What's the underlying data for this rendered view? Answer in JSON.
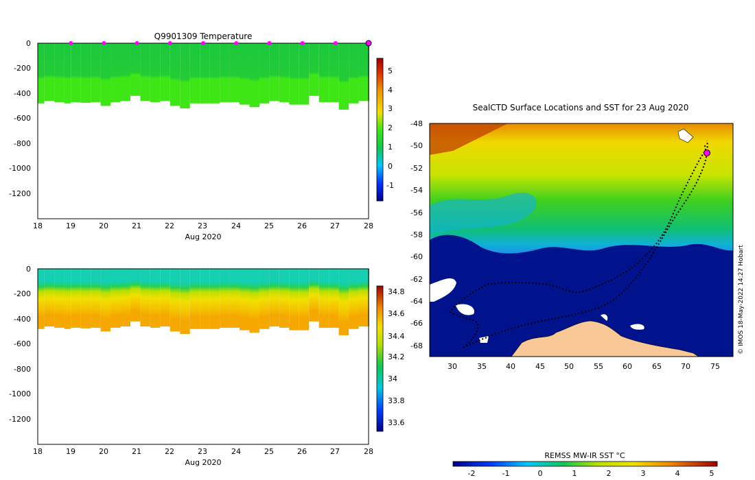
{
  "temperature_panel": {
    "title": "Q9901309  Temperature",
    "xlabel": "Aug 2020",
    "x_ticks": [
      "18",
      "19",
      "20",
      "21",
      "22",
      "23",
      "24",
      "25",
      "26",
      "27",
      "28"
    ],
    "y_ticks": [
      "0",
      "-200",
      "-400",
      "-600",
      "-800",
      "-1000",
      "-1200"
    ],
    "colorbar_ticks": [
      "5",
      "4",
      "3",
      "2",
      "1",
      "0",
      "-1"
    ]
  },
  "salinity_panel": {
    "xlabel": "Aug 2020",
    "x_ticks": [
      "18",
      "19",
      "20",
      "21",
      "22",
      "23",
      "24",
      "25",
      "26",
      "27",
      "28"
    ],
    "y_ticks": [
      "0",
      "-200",
      "-400",
      "-600",
      "-800",
      "-1000",
      "-1200"
    ],
    "colorbar_ticks": [
      "34.8",
      "34.6",
      "34.4",
      "34.2",
      "34",
      "33.8",
      "33.6"
    ]
  },
  "map_panel": {
    "title": "SealCTD Surface Locations and SST for 23 Aug 2020",
    "lat_ticks": [
      "-48",
      "-50",
      "-52",
      "-54",
      "-56",
      "-58",
      "-60",
      "-62",
      "-64",
      "-66",
      "-68"
    ],
    "lon_ticks": [
      "30",
      "35",
      "40",
      "45",
      "50",
      "55",
      "60",
      "65",
      "70",
      "75"
    ],
    "colorbar_label": "REMSS MW-IR SST °C",
    "colorbar_ticks": [
      "-2",
      "-1",
      "0",
      "1",
      "2",
      "3",
      "4",
      "5"
    ],
    "credit": "© IMOS 18-May-2022 14:27 Hobart"
  },
  "colors": {
    "temp_surface": "#1cc83c",
    "temp_deep": "#3ee616",
    "sal_surface": "#14cfb0",
    "sal_mid": "#f0e000",
    "sal_deep": "#f5a800",
    "marker": "#ff00ff",
    "land": "#f8c896",
    "ice_ocean": "#00128c"
  },
  "chart_data": [
    {
      "type": "heatmap",
      "title": "Q9901309  Temperature",
      "xlabel": "Aug 2020",
      "ylabel": "",
      "xlim": [
        18,
        28
      ],
      "ylim": [
        -1400,
        0
      ],
      "colorbar_range": [
        -2,
        6
      ],
      "profile_days": [
        18.0,
        18.2,
        18.5,
        18.8,
        19.0,
        19.3,
        19.6,
        19.9,
        20.2,
        20.5,
        20.8,
        21.1,
        21.4,
        21.7,
        22.0,
        22.3,
        22.6,
        22.9,
        23.2,
        23.5,
        23.8,
        24.1,
        24.4,
        24.7,
        25.0,
        25.3,
        25.6,
        25.9,
        26.2,
        26.5,
        26.8,
        27.1,
        27.4,
        27.7,
        28.0
      ],
      "profile_max_depth": [
        -480,
        -460,
        -470,
        -480,
        -470,
        -475,
        -470,
        -500,
        -470,
        -460,
        -420,
        -460,
        -470,
        -460,
        -500,
        -520,
        -480,
        -480,
        -480,
        -470,
        -470,
        -490,
        -510,
        -480,
        -460,
        -470,
        -490,
        -490,
        -420,
        -470,
        -470,
        -530,
        -480,
        -460,
        -460
      ],
      "markers_day": [
        19,
        20,
        21,
        22,
        23,
        24,
        25,
        26,
        27,
        28
      ]
    },
    {
      "type": "heatmap",
      "title": "",
      "xlabel": "Aug 2020",
      "ylabel": "",
      "xlim": [
        18,
        28
      ],
      "ylim": [
        -1400,
        0
      ],
      "colorbar_range": [
        33.5,
        34.9
      ]
    },
    {
      "type": "heatmap",
      "title": "SealCTD Surface Locations and SST for 23 Aug 2020",
      "xlabel": "",
      "ylabel": "",
      "xlim": [
        26,
        78
      ],
      "ylim": [
        -69,
        -48
      ],
      "colorbar_label": "REMSS MW-IR SST °C",
      "colorbar_range": [
        -2.5,
        5.2
      ],
      "current_position": [
        73.8,
        -50.7
      ]
    }
  ]
}
